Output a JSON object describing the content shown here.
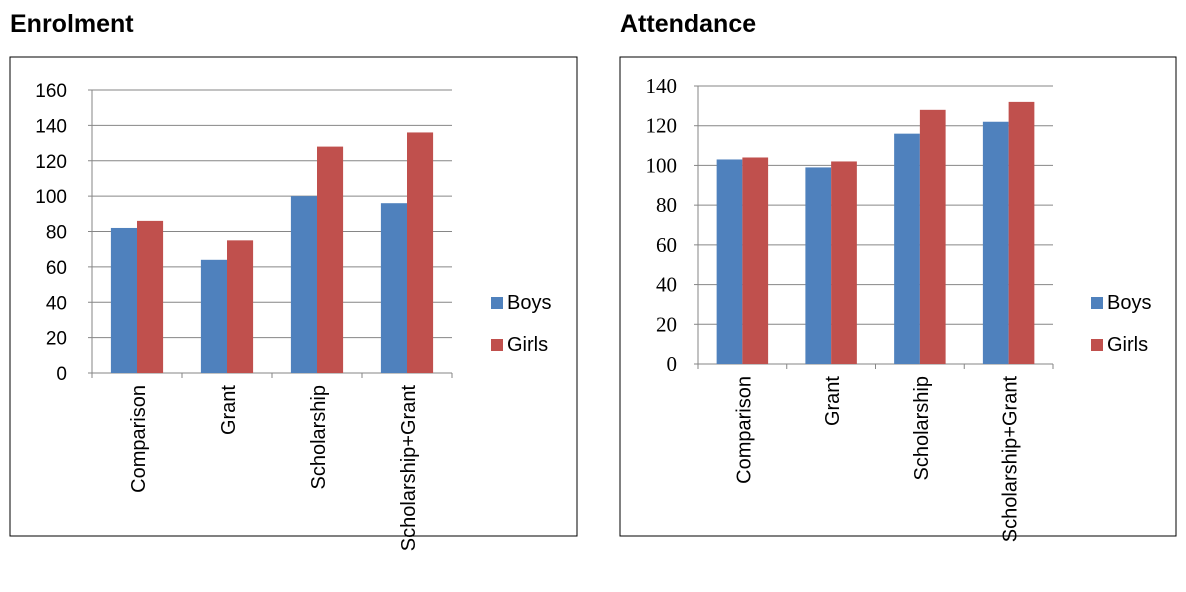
{
  "chart_data": [
    {
      "type": "bar",
      "title": "Enrolment",
      "categories": [
        "Comparison",
        "Grant",
        "Scholarship",
        "Scholarship+Grant"
      ],
      "series": [
        {
          "name": "Boys",
          "values": [
            82,
            64,
            100,
            96
          ]
        },
        {
          "name": "Girls",
          "values": [
            86,
            75,
            128,
            136
          ]
        }
      ],
      "ylim": [
        0,
        160
      ],
      "yticks": [
        0,
        20,
        40,
        60,
        80,
        100,
        120,
        140,
        160
      ],
      "grid": true,
      "legend": "right"
    },
    {
      "type": "bar",
      "title": "Attendance",
      "categories": [
        "Comparison",
        "Grant",
        "Scholarship",
        "Scholarship+Grant"
      ],
      "series": [
        {
          "name": "Boys",
          "values": [
            103,
            99,
            116,
            122
          ]
        },
        {
          "name": "Girls",
          "values": [
            104,
            102,
            128,
            132
          ]
        }
      ],
      "ylim": [
        0,
        140
      ],
      "yticks": [
        0,
        20,
        40,
        60,
        80,
        100,
        120,
        140
      ],
      "grid": true,
      "legend": "right"
    }
  ],
  "colors": {
    "Boys": "#4f81bd",
    "Girls": "#c0504d"
  }
}
